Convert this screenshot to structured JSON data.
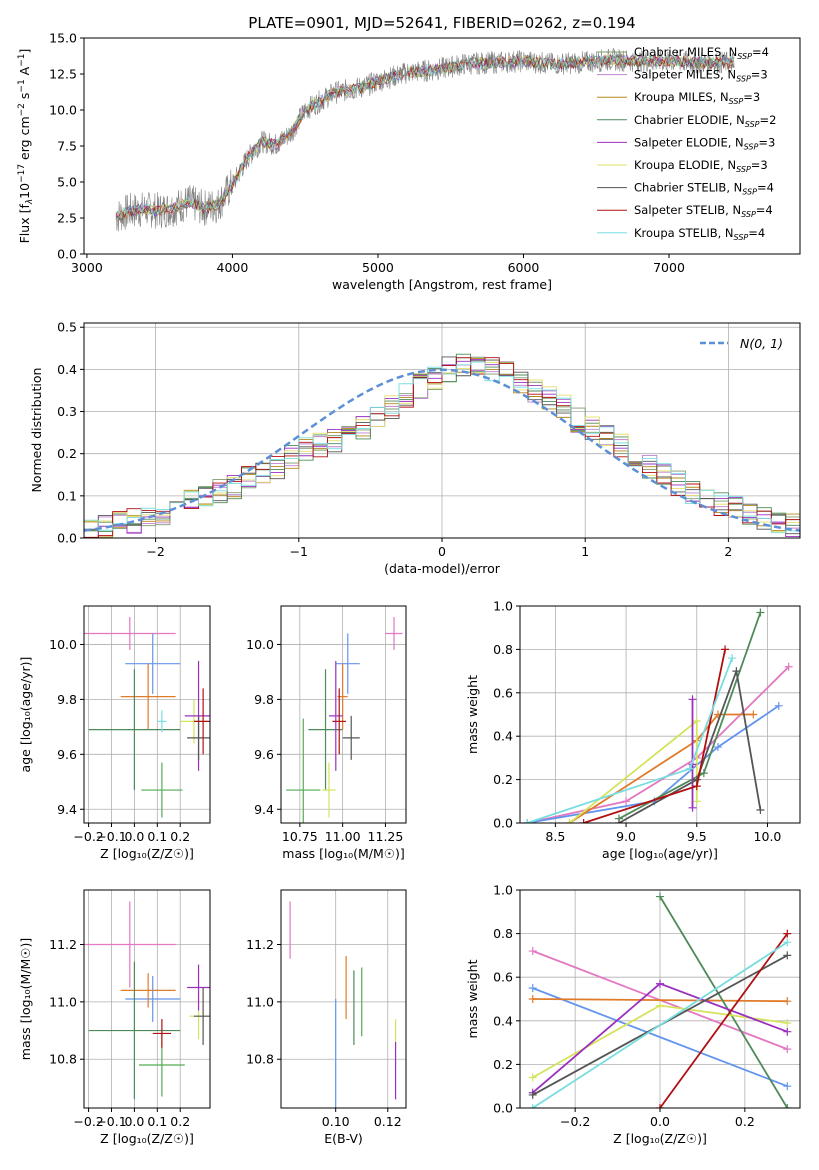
{
  "figure_title": "PLATE=0901, MJD=52641, FIBERID=0262, z=0.194",
  "colors": {
    "observed": "#808080",
    "fits": [
      "#7e9b6e",
      "#c080d0",
      "#b5881e",
      "#4f8a5a",
      "#9b30c0",
      "#e3e06a",
      "#555555",
      "#b01010",
      "#78dde0"
    ],
    "ssp_points": [
      "#e377c2",
      "#6495ed",
      "#e07b2a",
      "#4f8a5a",
      "#55aa55",
      "#d4e35a",
      "#9b30c0",
      "#555555",
      "#b01010",
      "#78dde0"
    ],
    "normal": "#5b8fd6"
  },
  "chart_data": [
    {
      "id": "spectrum",
      "type": "line",
      "xlabel": "wavelength [Angstrom, rest frame]",
      "ylabel_parts": [
        "Flux [f",
        "λ",
        "10",
        "−17",
        " erg cm",
        "−2",
        " s",
        "−1",
        " A",
        "−1",
        "]"
      ],
      "xlim": [
        2980,
        7900
      ],
      "ylim": [
        0,
        15
      ],
      "xticks": [
        3000,
        4000,
        5000,
        6000,
        7000
      ],
      "yticks": [
        0.0,
        2.5,
        5.0,
        7.5,
        10.0,
        12.5,
        15.0
      ],
      "grid": false,
      "legend_loc": "upper right",
      "spectrum_x": [
        3200,
        3300,
        3400,
        3500,
        3600,
        3700,
        3800,
        3900,
        4000,
        4100,
        4200,
        4300,
        4400,
        4500,
        4600,
        4700,
        4800,
        4900,
        5000,
        5200,
        5400,
        5600,
        5800,
        6000,
        6200,
        6400,
        6600,
        6800,
        7000,
        7200,
        7400
      ],
      "spectrum_y": [
        2.6,
        3.0,
        3.1,
        3.0,
        3.2,
        3.6,
        3.2,
        3.4,
        4.8,
        6.6,
        7.8,
        7.6,
        8.4,
        10.0,
        10.6,
        11.2,
        11.4,
        11.6,
        12.0,
        12.6,
        12.8,
        13.2,
        13.3,
        13.4,
        13.2,
        13.3,
        13.5,
        13.4,
        13.4,
        13.3,
        13.3
      ],
      "legend": [
        {
          "label": "Chabrier MILES, N",
          "sub": "SSP",
          "val": "=4"
        },
        {
          "label": "Salpeter MILES, N",
          "sub": "SSP",
          "val": "=3"
        },
        {
          "label": "Kroupa MILES, N",
          "sub": "SSP",
          "val": "=3"
        },
        {
          "label": "Chabrier ELODIE, N",
          "sub": "SSP",
          "val": "=2"
        },
        {
          "label": "Salpeter ELODIE, N",
          "sub": "SSP",
          "val": "=3"
        },
        {
          "label": "Kroupa ELODIE, N",
          "sub": "SSP",
          "val": "=3"
        },
        {
          "label": "Chabrier STELIB, N",
          "sub": "SSP",
          "val": "=4"
        },
        {
          "label": "Salpeter STELIB, N",
          "sub": "SSP",
          "val": "=4"
        },
        {
          "label": "Kroupa STELIB, N",
          "sub": "SSP",
          "val": "=4"
        }
      ]
    },
    {
      "id": "residual-hist",
      "type": "bar",
      "xlabel": "(data-model)/error",
      "ylabel": "Normed distribution",
      "xlim": [
        -2.5,
        2.5
      ],
      "ylim": [
        0,
        0.51
      ],
      "xticks": [
        -2,
        -1,
        0,
        1,
        2
      ],
      "yticks": [
        0.0,
        0.1,
        0.2,
        0.3,
        0.4,
        0.5
      ],
      "grid": true,
      "legend_loc": "upper right",
      "legend_label": "N(0, 1)",
      "bin_width": 0.1,
      "bin_start": -2.5,
      "hist_values": [
        0.02,
        0.03,
        0.04,
        0.04,
        0.05,
        0.06,
        0.07,
        0.09,
        0.1,
        0.11,
        0.12,
        0.14,
        0.15,
        0.17,
        0.19,
        0.21,
        0.22,
        0.23,
        0.25,
        0.26,
        0.29,
        0.31,
        0.34,
        0.36,
        0.38,
        0.4,
        0.41,
        0.4,
        0.4,
        0.39,
        0.37,
        0.35,
        0.33,
        0.31,
        0.28,
        0.26,
        0.24,
        0.22,
        0.19,
        0.17,
        0.15,
        0.13,
        0.11,
        0.1,
        0.08,
        0.07,
        0.06,
        0.05,
        0.04,
        0.03
      ]
    },
    {
      "id": "age-vs-Z",
      "type": "scatter",
      "xlabel": "Z [log₁₀(Z/Z☉)]",
      "ylabel": "age  [log₁₀(age/yr)]",
      "xlim": [
        -0.22,
        0.33
      ],
      "ylim": [
        9.35,
        10.14
      ],
      "xticks": [
        -0.2,
        -0.1,
        0.0,
        0.1,
        0.2
      ],
      "yticks": [
        9.4,
        9.6,
        9.8,
        10.0
      ],
      "grid": true,
      "points": [
        {
          "x": -0.02,
          "y": 10.04,
          "xe": 0.2,
          "ye": 0.06
        },
        {
          "x": 0.08,
          "y": 9.93,
          "xe": 0.12,
          "ye": 0.11
        },
        {
          "x": 0.06,
          "y": 9.81,
          "xe": 0.12,
          "ye": 0.12
        },
        {
          "x": 0.0,
          "y": 9.69,
          "xe": 0.2,
          "ye": 0.22
        },
        {
          "x": 0.12,
          "y": 9.47,
          "xe": 0.09,
          "ye": 0.1
        },
        {
          "x": 0.26,
          "y": 9.72,
          "xe": 0.06,
          "ye": 0.08
        },
        {
          "x": 0.28,
          "y": 9.74,
          "xe": 0.06,
          "ye": 0.2
        },
        {
          "x": 0.28,
          "y": 9.66,
          "xe": 0.05,
          "ye": 0.08
        },
        {
          "x": 0.3,
          "y": 9.72,
          "xe": 0.04,
          "ye": 0.12
        },
        {
          "x": 0.12,
          "y": 9.72,
          "xe": 0.02,
          "ye": 0.04
        }
      ]
    },
    {
      "id": "age-vs-mass",
      "type": "scatter",
      "xlabel": "mass [log₁₀(M/M☉)]",
      "ylabel": "",
      "xlim": [
        10.64,
        11.37
      ],
      "ylim": [
        9.35,
        10.14
      ],
      "xticks": [
        10.75,
        11.0,
        11.25
      ],
      "yticks": [
        9.4,
        9.6,
        9.8,
        10.0
      ],
      "grid": true,
      "points": [
        {
          "x": 11.3,
          "y": 10.04,
          "xe": 0.05,
          "ye": 0.06
        },
        {
          "x": 11.03,
          "y": 9.93,
          "xe": 0.07,
          "ye": 0.11
        },
        {
          "x": 11.0,
          "y": 9.81,
          "xe": 0.03,
          "ye": 0.12
        },
        {
          "x": 10.9,
          "y": 9.69,
          "xe": 0.1,
          "ye": 0.22
        },
        {
          "x": 10.77,
          "y": 9.47,
          "xe": 0.1,
          "ye": 0.26
        },
        {
          "x": 10.92,
          "y": 9.47,
          "xe": 0.04,
          "ye": 0.1
        },
        {
          "x": 10.96,
          "y": 9.74,
          "xe": 0.04,
          "ye": 0.2
        },
        {
          "x": 11.05,
          "y": 9.66,
          "xe": 0.05,
          "ye": 0.08
        },
        {
          "x": 10.98,
          "y": 9.72,
          "xe": 0.04,
          "ye": 0.12
        }
      ]
    },
    {
      "id": "massweight-vs-age",
      "type": "line",
      "xlabel": "age  [log₁₀(age/yr)]",
      "ylabel": "mass weight",
      "xlim": [
        8.25,
        10.23
      ],
      "ylim": [
        0,
        1.0
      ],
      "xticks": [
        8.5,
        9.0,
        9.5,
        10.0
      ],
      "yticks": [
        0.0,
        0.2,
        0.4,
        0.6,
        0.8,
        1.0
      ],
      "grid": true,
      "series": [
        {
          "x": [
            8.3,
            9.0,
            9.5,
            10.15
          ],
          "y": [
            0.0,
            0.1,
            0.3,
            0.72
          ]
        },
        {
          "x": [
            8.3,
            9.2,
            9.65,
            10.08
          ],
          "y": [
            0.0,
            0.1,
            0.35,
            0.54
          ]
        },
        {
          "x": [
            8.6,
            9.5,
            9.65,
            9.9
          ],
          "y": [
            0.0,
            0.38,
            0.5,
            0.5
          ]
        },
        {
          "x": [
            8.95,
            9.55,
            9.95
          ],
          "y": [
            0.02,
            0.23,
            0.97
          ]
        },
        {
          "x": [
            8.6,
            9.5,
            9.5
          ],
          "y": [
            0.0,
            0.47,
            0.1
          ]
        },
        {
          "x": [
            9.47,
            9.47,
            9.47
          ],
          "y": [
            0.07,
            0.57,
            0.27
          ]
        },
        {
          "x": [
            8.95,
            9.5,
            9.78,
            9.95
          ],
          "y": [
            0.0,
            0.2,
            0.7,
            0.06
          ]
        },
        {
          "x": [
            8.7,
            9.5,
            9.7
          ],
          "y": [
            0.0,
            0.17,
            0.8
          ]
        },
        {
          "x": [
            8.3,
            9.45,
            9.75
          ],
          "y": [
            0.0,
            0.25,
            0.76
          ]
        }
      ]
    },
    {
      "id": "mass-vs-Z",
      "type": "scatter",
      "xlabel": "Z [log₁₀(Z/Z☉)]",
      "ylabel": "mass [log₁₀(M/M☉)]",
      "xlim": [
        -0.22,
        0.33
      ],
      "ylim": [
        10.63,
        11.39
      ],
      "xticks": [
        -0.2,
        -0.1,
        0.0,
        0.1,
        0.2
      ],
      "yticks": [
        10.8,
        11.0,
        11.2
      ],
      "grid": true,
      "points": [
        {
          "x": -0.02,
          "y": 11.2,
          "xe": 0.2,
          "ye": 0.15
        },
        {
          "x": 0.08,
          "y": 11.01,
          "xe": 0.12,
          "ye": 0.08
        },
        {
          "x": 0.06,
          "y": 11.04,
          "xe": 0.12,
          "ye": 0.06
        },
        {
          "x": 0.0,
          "y": 10.9,
          "xe": 0.2,
          "ye": 0.24
        },
        {
          "x": 0.12,
          "y": 10.78,
          "xe": 0.1,
          "ye": 0.11
        },
        {
          "x": 0.28,
          "y": 10.95,
          "xe": 0.04,
          "ye": 0.08
        },
        {
          "x": 0.28,
          "y": 11.05,
          "xe": 0.05,
          "ye": 0.08
        },
        {
          "x": 0.3,
          "y": 10.95,
          "xe": 0.04,
          "ye": 0.1
        },
        {
          "x": 0.12,
          "y": 10.89,
          "xe": 0.04,
          "ye": 0.05
        }
      ]
    },
    {
      "id": "mass-vs-ebv",
      "type": "scatter",
      "xlabel": "E(B-V)",
      "ylabel": "",
      "xlim": [
        0.079,
        0.127
      ],
      "ylim": [
        10.63,
        11.39
      ],
      "xticks": [
        0.1,
        0.12
      ],
      "yticks": [
        10.8,
        11.0,
        11.2
      ],
      "grid": true,
      "points": [
        {
          "x": 0.0825,
          "y": 11.25,
          "xe": 0,
          "ye": 0.1
        },
        {
          "x": 0.1,
          "y": 10.82,
          "xe": 0,
          "ye": 0.19
        },
        {
          "x": 0.104,
          "y": 11.05,
          "xe": 0,
          "ye": 0.11
        },
        {
          "x": 0.107,
          "y": 10.98,
          "xe": 0,
          "ye": 0.13
        },
        {
          "x": 0.11,
          "y": 11.0,
          "xe": 0,
          "ye": 0.12
        },
        {
          "x": 0.123,
          "y": 10.89,
          "xe": 0,
          "ye": 0.05
        },
        {
          "x": 0.123,
          "y": 10.76,
          "xe": 0,
          "ye": 0.1
        }
      ]
    },
    {
      "id": "massweight-vs-Z",
      "type": "line",
      "xlabel": "Z [log₁₀(Z/Z☉)]",
      "ylabel": "mass weight",
      "xlim": [
        -0.33,
        0.33
      ],
      "ylim": [
        0,
        1.0
      ],
      "xticks": [
        -0.2,
        0.0,
        0.2
      ],
      "yticks": [
        0.0,
        0.2,
        0.4,
        0.6,
        0.8,
        1.0
      ],
      "grid": true,
      "series": [
        {
          "x": [
            -0.3,
            0.3
          ],
          "y": [
            0.72,
            0.27
          ]
        },
        {
          "x": [
            -0.3,
            0.3
          ],
          "y": [
            0.55,
            0.1
          ]
        },
        {
          "x": [
            -0.3,
            0.3
          ],
          "y": [
            0.5,
            0.49
          ]
        },
        {
          "x": [
            0.0,
            0.3
          ],
          "y": [
            0.97,
            0.0
          ]
        },
        {
          "x": [
            -0.3,
            0.0,
            0.3
          ],
          "y": [
            0.14,
            0.47,
            0.39
          ]
        },
        {
          "x": [
            -0.3,
            0.0,
            0.3
          ],
          "y": [
            0.07,
            0.57,
            0.35
          ]
        },
        {
          "x": [
            -0.3,
            0.3
          ],
          "y": [
            0.06,
            0.7
          ]
        },
        {
          "x": [
            0.0,
            0.3
          ],
          "y": [
            0.0,
            0.8
          ]
        },
        {
          "x": [
            -0.3,
            0.3
          ],
          "y": [
            0.0,
            0.76
          ]
        }
      ]
    }
  ]
}
